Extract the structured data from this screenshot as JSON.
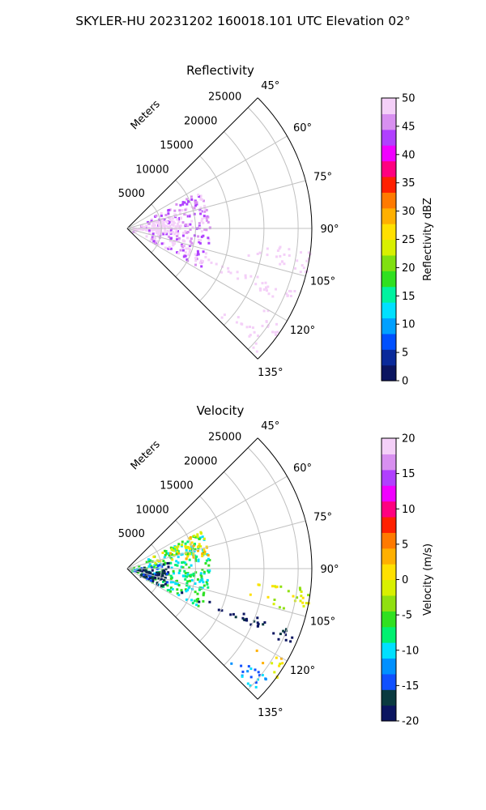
{
  "figure": {
    "title": "SKYLER-HU  20231202  160018.101 UTC Elevation 02°"
  },
  "chart_data": [
    {
      "type": "polar-ppi",
      "title": "Reflectivity",
      "range_label": "Meters",
      "range_ticks": [
        5000,
        10000,
        15000,
        20000,
        25000
      ],
      "range_max": 27000,
      "angle_range_deg": [
        45,
        135
      ],
      "angle_ticks": [
        "45°",
        "60°",
        "75°",
        "90°",
        "105°",
        "120°",
        "135°"
      ],
      "colorbar": {
        "label": "Reflectivity dBZ",
        "min": 0,
        "max": 50,
        "ticks": [
          0,
          5,
          10,
          15,
          20,
          25,
          30,
          35,
          40,
          45,
          50
        ],
        "colors": [
          "#0b1560",
          "#0a2a9a",
          "#0050ff",
          "#00a0ff",
          "#00e0ff",
          "#00f2a0",
          "#30e020",
          "#80e010",
          "#d8f000",
          "#ffe000",
          "#ffb000",
          "#ff7a00",
          "#ff2000",
          "#ff0080",
          "#f000ff",
          "#b040ff",
          "#d890f0",
          "#f4d0f8"
        ]
      },
      "echo_regions": [
        {
          "az_from": 62,
          "az_to": 118,
          "r_from": 0,
          "r_to": 12000,
          "level": 16
        },
        {
          "az_from": 72,
          "az_to": 98,
          "r_from": 0,
          "r_to": 8000,
          "level": 24
        },
        {
          "az_from": 84,
          "az_to": 94,
          "r_from": 0,
          "r_to": 5000,
          "level": 22
        },
        {
          "az_from": 110,
          "az_to": 115,
          "r_from": 6000,
          "r_to": 26000,
          "level": 20
        },
        {
          "az_from": 112,
          "az_to": 114,
          "r_from": 18000,
          "r_to": 26000,
          "level": 33
        },
        {
          "az_from": 96,
          "az_to": 104,
          "r_from": 17000,
          "r_to": 27000,
          "level": 18
        },
        {
          "az_from": 128,
          "az_to": 134,
          "r_from": 18000,
          "r_to": 26000,
          "level": 19
        },
        {
          "az_from": 120,
          "az_to": 126,
          "r_from": 22000,
          "r_to": 27000,
          "level": 18
        }
      ]
    },
    {
      "type": "polar-ppi",
      "title": "Velocity",
      "range_label": "Meters",
      "range_ticks": [
        5000,
        10000,
        15000,
        20000,
        25000
      ],
      "range_max": 27000,
      "angle_range_deg": [
        45,
        135
      ],
      "angle_ticks": [
        "45°",
        "60°",
        "75°",
        "90°",
        "105°",
        "120°",
        "135°"
      ],
      "colorbar": {
        "label": "Velocity (m/s)",
        "min": -20,
        "max": 20,
        "ticks": [
          -20,
          -15,
          -10,
          -5,
          0,
          5,
          10,
          15,
          20
        ],
        "colors": [
          "#0b1560",
          "#0a3a40",
          "#1050ff",
          "#0090ff",
          "#00e0ff",
          "#00f070",
          "#30e020",
          "#90e010",
          "#d8f000",
          "#ffe000",
          "#ffb000",
          "#ff7a00",
          "#ff2000",
          "#ff0080",
          "#f000ff",
          "#b040ff",
          "#d890f0",
          "#f4d0f8"
        ]
      },
      "echo_regions": [
        {
          "az_from": 62,
          "az_to": 118,
          "r_from": 0,
          "r_to": 12000,
          "level": 5
        },
        {
          "az_from": 62,
          "az_to": 80,
          "r_from": 3000,
          "r_to": 12000,
          "level": 9
        },
        {
          "az_from": 80,
          "az_to": 118,
          "r_from": 0,
          "r_to": 6000,
          "level": 1
        },
        {
          "az_from": 110,
          "az_to": 115,
          "r_from": 6000,
          "r_to": 26000,
          "level": 0
        },
        {
          "az_from": 96,
          "az_to": 104,
          "r_from": 17000,
          "r_to": 27000,
          "level": 8
        },
        {
          "az_from": 120,
          "az_to": 126,
          "r_from": 22000,
          "r_to": 27000,
          "level": 9
        },
        {
          "az_from": 128,
          "az_to": 134,
          "r_from": 18000,
          "r_to": 26000,
          "level": 3
        }
      ]
    }
  ]
}
